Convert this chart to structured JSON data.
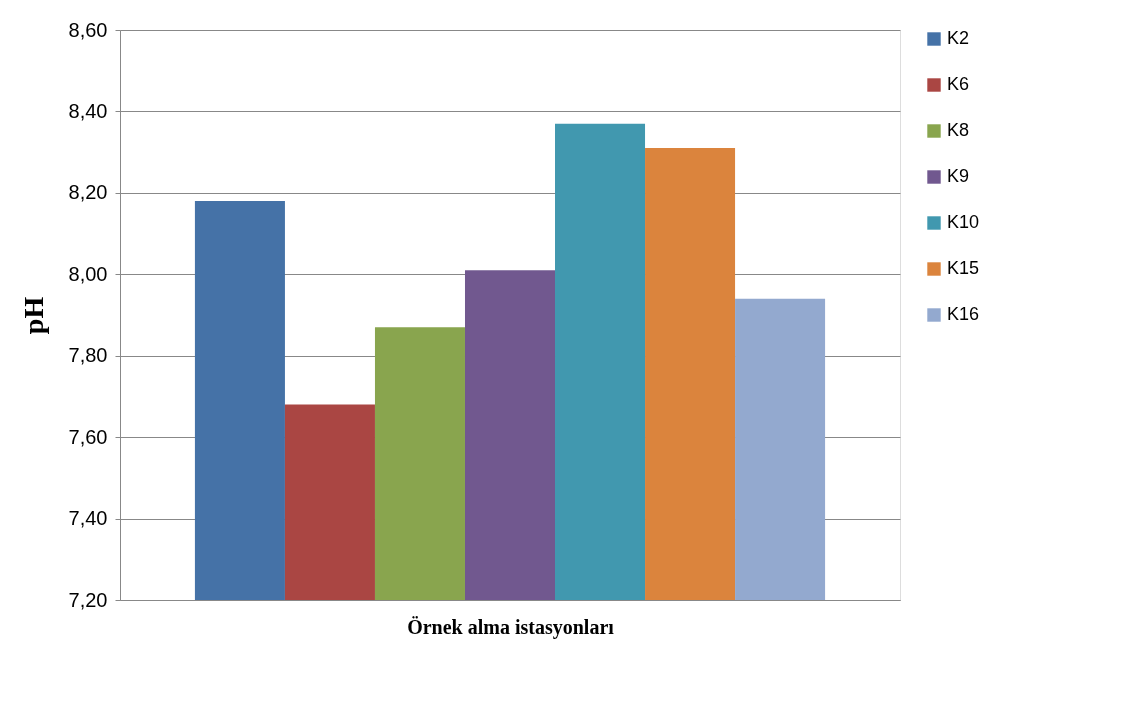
{
  "chart_data": {
    "type": "bar",
    "xlabel": "Örnek alma istasyonları",
    "ylabel": "pH",
    "categories": [
      null
    ],
    "series": [
      {
        "name": "K2",
        "color": "#4572a7",
        "values": [
          8.18
        ]
      },
      {
        "name": "K6",
        "color": "#aa4643",
        "values": [
          7.68
        ]
      },
      {
        "name": "K8",
        "color": "#89a54e",
        "values": [
          7.87
        ]
      },
      {
        "name": "K9",
        "color": "#71588f",
        "values": [
          8.01
        ]
      },
      {
        "name": "K10",
        "color": "#4198af",
        "values": [
          8.37
        ]
      },
      {
        "name": "K15",
        "color": "#db843d",
        "values": [
          8.31
        ]
      },
      {
        "name": "K16",
        "color": "#93a9cf",
        "values": [
          7.94
        ]
      }
    ],
    "ylim": [
      7.2,
      8.6
    ],
    "yticks": [
      {
        "value": 7.2,
        "label": "7,20"
      },
      {
        "value": 7.4,
        "label": "7,40"
      },
      {
        "value": 7.6,
        "label": "7,60"
      },
      {
        "value": 7.8,
        "label": "7,80"
      },
      {
        "value": 8.0,
        "label": "8,00"
      },
      {
        "value": 8.2,
        "label": "8,20"
      },
      {
        "value": 8.4,
        "label": "8,40"
      },
      {
        "value": 8.6,
        "label": "8,60"
      }
    ],
    "grid": "y",
    "legend": "right"
  }
}
